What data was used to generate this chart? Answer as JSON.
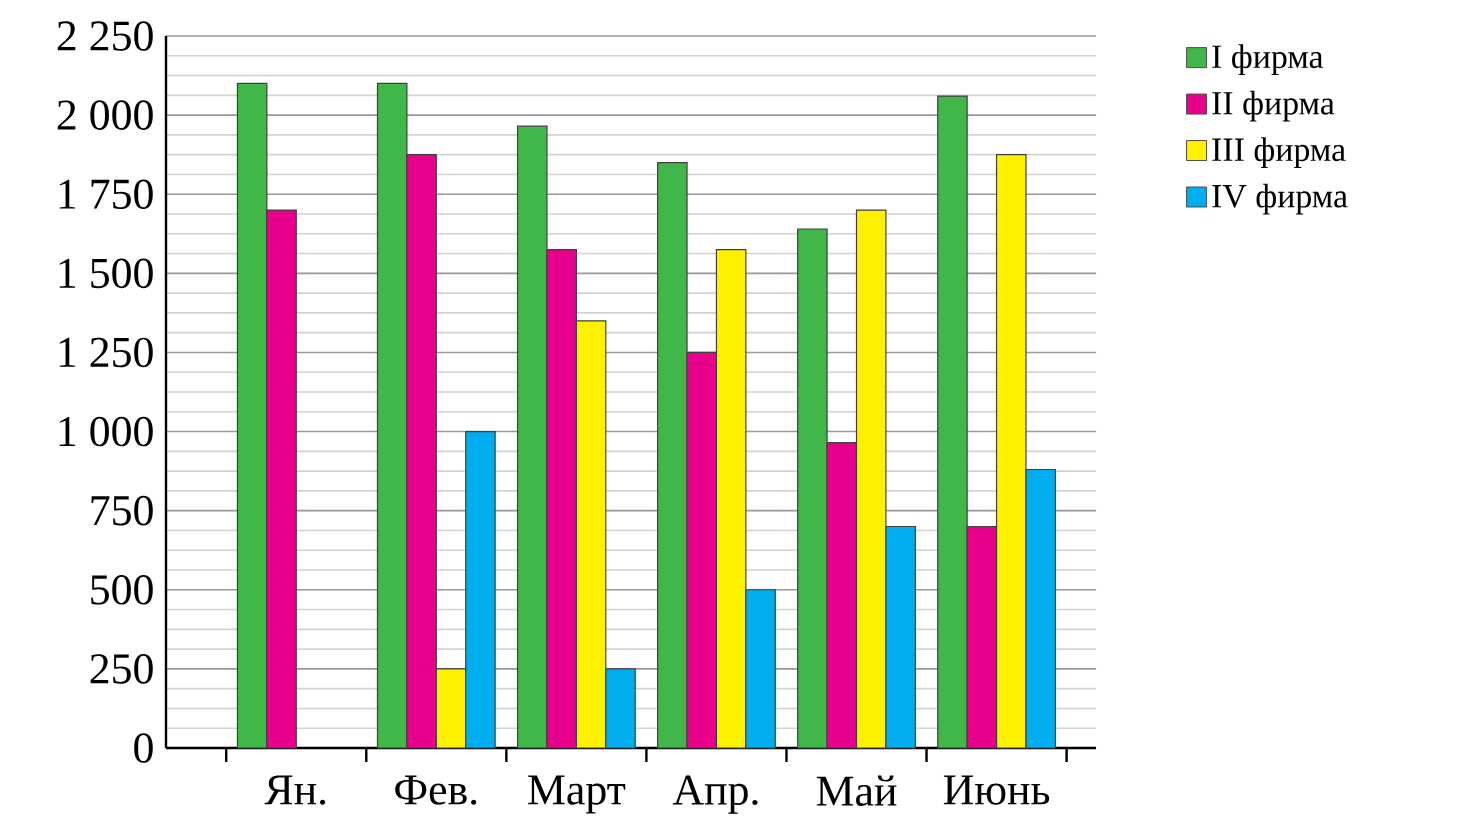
{
  "chart_data": {
    "type": "bar",
    "categories": [
      "Ян.",
      "Фев.",
      "Март",
      "Апр.",
      "Май",
      "Июнь"
    ],
    "series": [
      {
        "name": "I фирма",
        "color": "#41b649",
        "values": [
          2100,
          2100,
          1965,
          1850,
          1640,
          2060
        ]
      },
      {
        "name": "II фирма",
        "color": "#e8008c",
        "values": [
          1700,
          1875,
          1575,
          1250,
          965,
          700
        ]
      },
      {
        "name": "III фирма",
        "color": "#fff200",
        "values": [
          null,
          250,
          1350,
          1575,
          1700,
          1875
        ]
      },
      {
        "name": "IV фирма",
        "color": "#00aeef",
        "values": [
          null,
          1000,
          250,
          500,
          700,
          880
        ]
      }
    ],
    "ylim": [
      0,
      2250
    ],
    "yticks": [
      0,
      250,
      500,
      750,
      {
        "value": 1000,
        "label": "1 000"
      },
      {
        "value": 1250,
        "label": "1 250"
      },
      {
        "value": 1500,
        "label": "1 500"
      },
      {
        "value": 1750,
        "label": "1 750"
      },
      {
        "value": 2000,
        "label": "2 000"
      },
      {
        "value": 2250,
        "label": "2 250"
      }
    ],
    "grid": "y",
    "legend": "right"
  }
}
